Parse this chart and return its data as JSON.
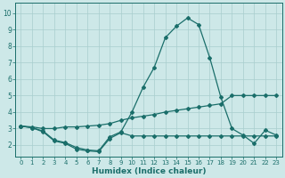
{
  "xlabel": "Humidex (Indice chaleur)",
  "xlim": [
    -0.5,
    23.5
  ],
  "ylim": [
    1.3,
    10.6
  ],
  "xticks": [
    0,
    1,
    2,
    3,
    4,
    5,
    6,
    7,
    8,
    9,
    10,
    11,
    12,
    13,
    14,
    15,
    16,
    17,
    18,
    19,
    20,
    21,
    22,
    23
  ],
  "yticks": [
    2,
    3,
    4,
    5,
    6,
    7,
    8,
    9,
    10
  ],
  "bg_color": "#cde8e8",
  "line_color": "#1a6e6a",
  "grid_color": "#a8cece",
  "line1_x": [
    0,
    1,
    2,
    3,
    4,
    5,
    6,
    7,
    8,
    9,
    10,
    11,
    12,
    13,
    14,
    15,
    16,
    17,
    18,
    19,
    20,
    21,
    22,
    23
  ],
  "line1_y": [
    3.15,
    3.05,
    2.8,
    2.25,
    2.1,
    1.75,
    1.65,
    1.6,
    2.4,
    2.75,
    2.55,
    2.55,
    2.55,
    2.55,
    2.55,
    2.55,
    2.55,
    2.55,
    2.55,
    2.55,
    2.55,
    2.55,
    2.55,
    2.55
  ],
  "line2_x": [
    0,
    1,
    2,
    3,
    4,
    5,
    6,
    7,
    8,
    9,
    10,
    11,
    12,
    13,
    14,
    15,
    16,
    17,
    18,
    19,
    20,
    21,
    22,
    23
  ],
  "line2_y": [
    3.15,
    3.05,
    2.85,
    2.3,
    2.15,
    1.85,
    1.7,
    1.65,
    2.5,
    2.8,
    4.0,
    5.5,
    6.7,
    8.5,
    9.2,
    9.7,
    9.3,
    7.3,
    4.9,
    3.0,
    2.6,
    2.1,
    2.9,
    2.6
  ],
  "line3_x": [
    0,
    1,
    2,
    3,
    4,
    5,
    6,
    7,
    8,
    9,
    10,
    11,
    12,
    13,
    14,
    15,
    16,
    17,
    18,
    19,
    20,
    21,
    22,
    23
  ],
  "line3_y": [
    3.15,
    3.1,
    3.0,
    3.0,
    3.1,
    3.1,
    3.15,
    3.2,
    3.3,
    3.5,
    3.65,
    3.75,
    3.85,
    4.0,
    4.1,
    4.2,
    4.3,
    4.4,
    4.5,
    5.0,
    5.0,
    5.0,
    5.0,
    5.0
  ]
}
